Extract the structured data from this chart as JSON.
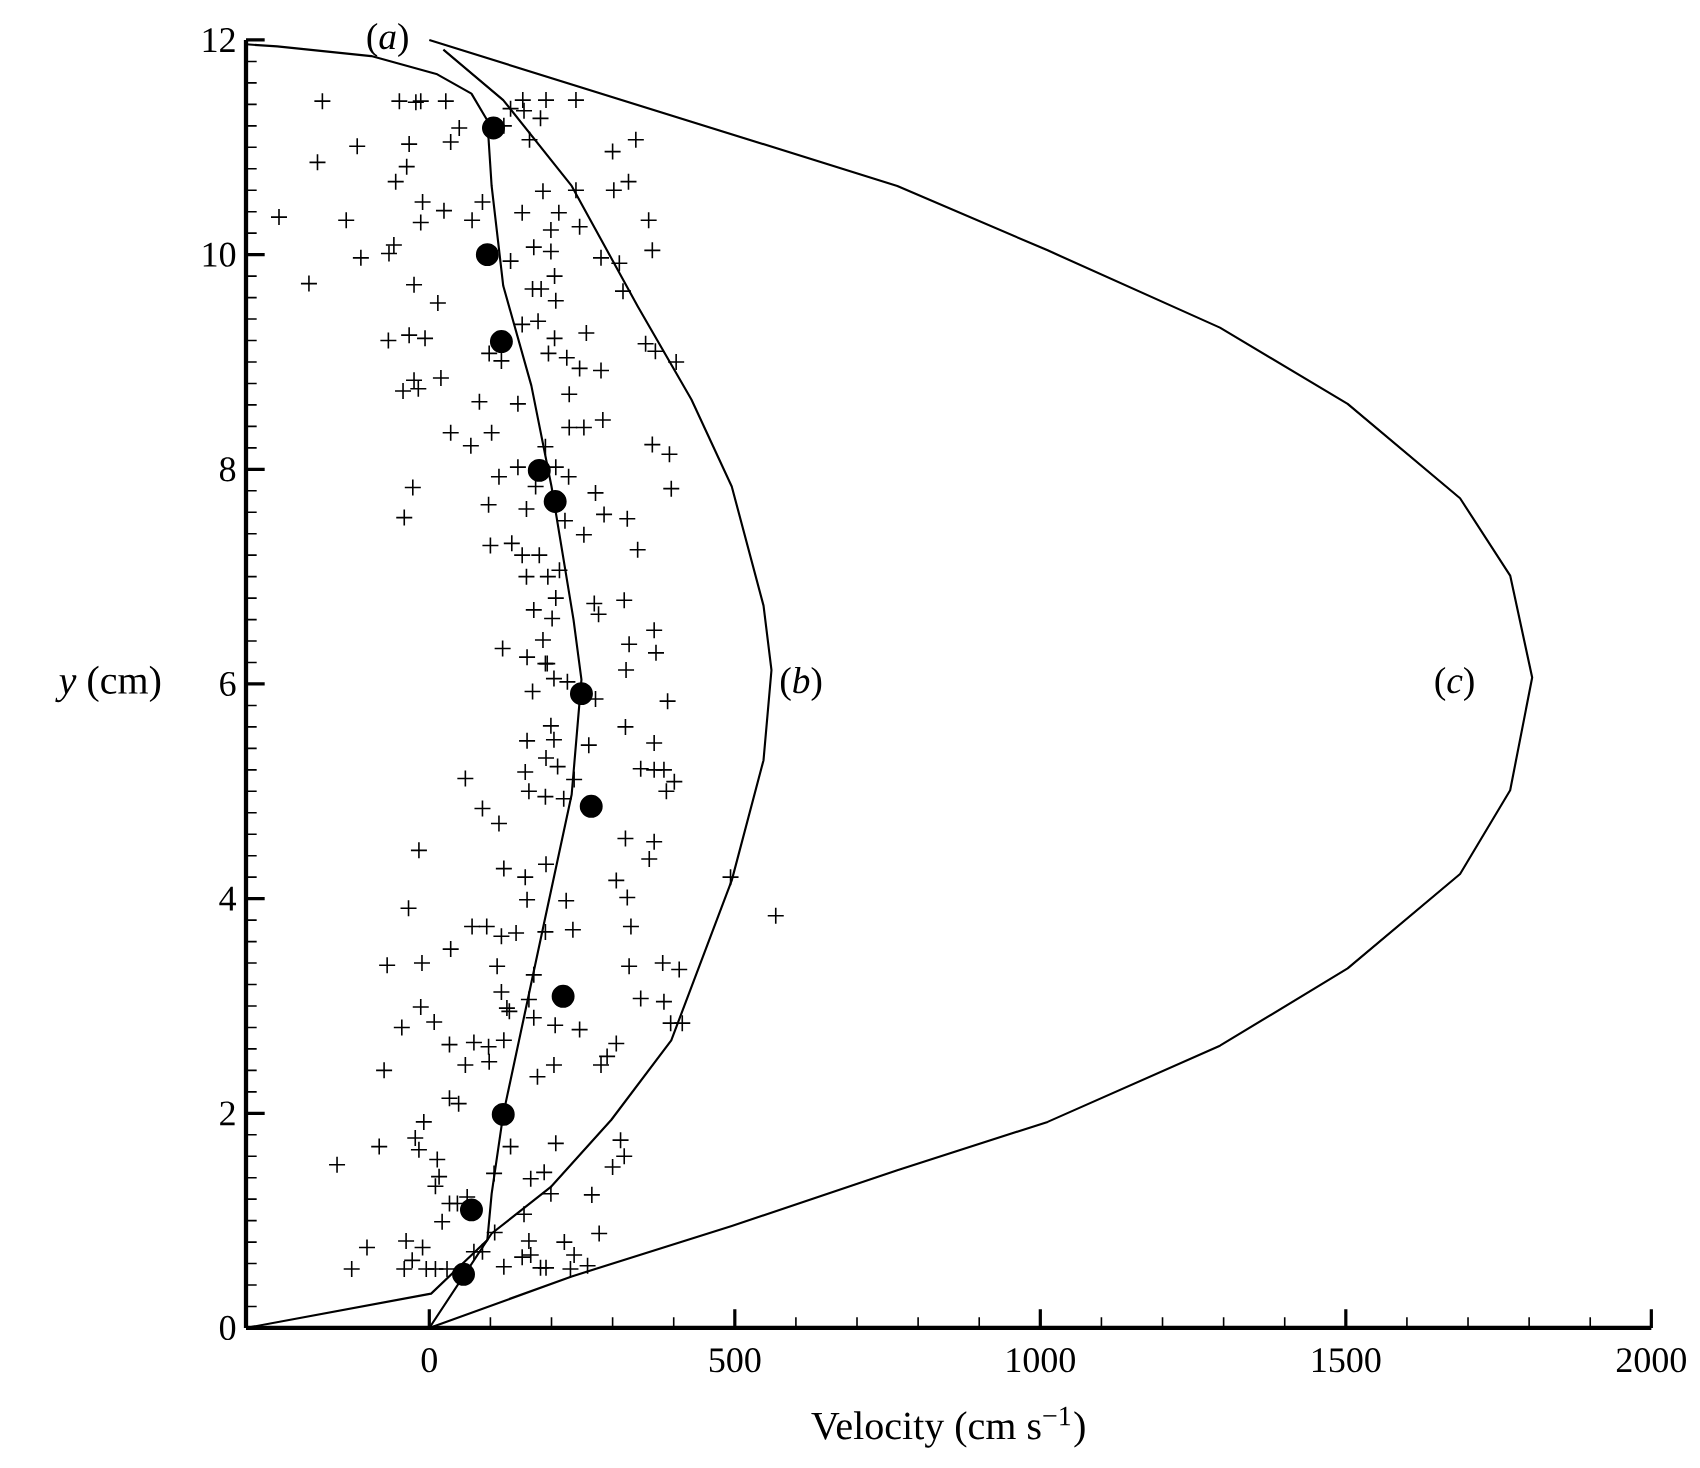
{
  "chart_data": {
    "type": "scatter",
    "xlabel": "Velocity (cm s$^{−1}$)",
    "ylabel": "*y* (cm)",
    "xlim": [
      -300,
      2000
    ],
    "ylim": [
      0,
      12
    ],
    "xticks": [
      0,
      500,
      1000,
      1500,
      2000
    ],
    "yticks": [
      0,
      2,
      4,
      6,
      8,
      10,
      12
    ],
    "annotations": [
      "(*a*)",
      "(*b*)",
      "(*c*)"
    ],
    "series": [
      {
        "marker": "cross",
        "color": "#000000",
        "x": [
          -175,
          -49,
          -22,
          -14,
          27,
          133,
          153,
          191,
          240,
          155,
          182,
          49,
          122,
          164,
          35,
          -33,
          -118,
          338,
          300,
          -183,
          -37,
          -55,
          326,
          302,
          186,
          240,
          -11,
          87,
          -246,
          -136,
          -14,
          24,
          70,
          152,
          212,
          199,
          246,
          359,
          -58,
          -66,
          -112,
          171,
          199,
          133,
          281,
          311,
          365,
          -197,
          -25,
          205,
          169,
          183,
          317,
          207,
          14,
          152,
          178,
          -67,
          -33,
          -7,
          205,
          257,
          354,
          370,
          404,
          98,
          118,
          195,
          225,
          246,
          281,
          -25,
          -43,
          -18,
          19,
          229,
          82,
          145,
          229,
          253,
          284,
          35,
          68,
          102,
          190,
          365,
          393,
          114,
          145,
          174,
          207,
          228,
          -27,
          396,
          -41,
          97,
          159,
          222,
          272,
          253,
          286,
          324,
          100,
          135,
          152,
          180,
          341,
          159,
          194,
          213,
          171,
          201,
          270,
          277,
          319,
          207,
          186,
          368,
          120,
          160,
          190,
          327,
          371,
          322,
          193,
          204,
          226,
          169,
          272,
          390,
          199,
          321,
          160,
          204,
          261,
          368,
          191,
          346,
          368,
          384,
          401,
          59,
          157,
          210,
          237,
          388,
          163,
          190,
          220,
          87,
          114,
          321,
          368,
          360,
          -17,
          122,
          157,
          191,
          306,
          160,
          224,
          324,
          493,
          567,
          -34,
          70,
          94,
          118,
          142,
          190,
          235,
          330,
          35,
          -69,
          -12,
          111,
          171,
          327,
          382,
          409,
          118,
          127,
          -14,
          163,
          346,
          384,
          -45,
          8,
          33,
          73,
          97,
          122,
          131,
          171,
          206,
          246,
          306,
          395,
          414,
          59,
          98,
          177,
          204,
          281,
          291,
          -74,
          33,
          48,
          -9,
          -23,
          -82,
          -17,
          133,
          207,
          313,
          319,
          -151,
          13,
          16,
          10,
          106,
          166,
          188,
          300,
          33,
          46,
          62,
          266,
          199,
          155,
          21,
          107,
          278,
          -102,
          -38,
          -11,
          73,
          87,
          163,
          221,
          152,
          166,
          237,
          -127,
          -41,
          -28,
          -5,
          10,
          29,
          122,
          182,
          191,
          231,
          259
        ],
        "values": [
          11.43,
          11.43,
          11.42,
          11.43,
          11.43,
          11.36,
          11.44,
          11.44,
          11.44,
          11.34,
          11.27,
          11.18,
          11.2,
          11.07,
          11.05,
          11.03,
          11.01,
          11.07,
          10.96,
          10.86,
          10.82,
          10.68,
          10.68,
          10.6,
          10.59,
          10.6,
          10.49,
          10.49,
          10.35,
          10.32,
          10.3,
          10.41,
          10.32,
          10.39,
          10.39,
          10.23,
          10.26,
          10.32,
          10.09,
          10.01,
          9.97,
          10.07,
          10.03,
          9.94,
          9.97,
          9.92,
          10.04,
          9.73,
          9.72,
          9.8,
          9.68,
          9.68,
          9.66,
          9.57,
          9.55,
          9.35,
          9.38,
          9.2,
          9.25,
          9.22,
          9.22,
          9.27,
          9.17,
          9.1,
          9.0,
          9.08,
          9.01,
          9.08,
          9.04,
          8.94,
          8.92,
          8.83,
          8.73,
          8.75,
          8.85,
          8.7,
          8.63,
          8.61,
          8.39,
          8.39,
          8.46,
          8.34,
          8.22,
          8.34,
          8.21,
          8.23,
          8.14,
          7.93,
          8.02,
          7.84,
          8.02,
          7.93,
          7.83,
          7.82,
          7.55,
          7.67,
          7.63,
          7.52,
          7.78,
          7.39,
          7.58,
          7.54,
          7.29,
          7.31,
          7.2,
          7.2,
          7.25,
          7.0,
          7.0,
          7.06,
          6.69,
          6.61,
          6.75,
          6.65,
          6.78,
          6.8,
          6.41,
          6.5,
          6.33,
          6.25,
          6.19,
          6.37,
          6.29,
          6.13,
          6.19,
          6.05,
          6.02,
          5.93,
          5.86,
          5.84,
          5.61,
          5.6,
          5.47,
          5.48,
          5.43,
          5.45,
          5.31,
          5.21,
          5.2,
          5.2,
          5.09,
          5.12,
          5.18,
          5.23,
          5.11,
          5.0,
          5.0,
          4.95,
          4.93,
          4.84,
          4.7,
          4.56,
          4.53,
          4.37,
          4.45,
          4.28,
          4.2,
          4.32,
          4.17,
          3.99,
          3.98,
          4.01,
          4.2,
          3.84,
          3.91,
          3.74,
          3.74,
          3.65,
          3.68,
          3.69,
          3.71,
          3.74,
          3.53,
          3.38,
          3.4,
          3.37,
          3.29,
          3.37,
          3.4,
          3.34,
          3.13,
          2.98,
          2.99,
          3.06,
          3.07,
          3.04,
          2.8,
          2.85,
          2.64,
          2.66,
          2.62,
          2.68,
          2.95,
          2.89,
          2.82,
          2.78,
          2.65,
          2.84,
          2.84,
          2.45,
          2.48,
          2.34,
          2.45,
          2.45,
          2.53,
          2.4,
          2.14,
          2.09,
          1.92,
          1.77,
          1.69,
          1.66,
          1.69,
          1.72,
          1.75,
          1.6,
          1.52,
          1.57,
          1.41,
          1.32,
          1.44,
          1.39,
          1.45,
          1.5,
          1.16,
          1.16,
          1.22,
          1.24,
          1.25,
          1.06,
          0.99,
          0.89,
          0.88,
          0.75,
          0.81,
          0.75,
          0.71,
          0.71,
          0.81,
          0.8,
          0.66,
          0.68,
          0.68,
          0.55,
          0.55,
          0.63,
          0.55,
          0.55,
          0.55,
          0.57,
          0.56,
          0.56,
          0.55,
          0.58
        ]
      },
      {
        "type": "line",
        "color": "#000000",
        "x": [
          -300,
          3,
          95,
          102,
          121,
          187,
          233,
          249,
          236,
          200,
          167,
          121,
          102,
          95,
          69,
          13,
          -95,
          -249,
          -300
        ],
        "values": [
          0,
          0.32,
          0.82,
          1.25,
          1.99,
          3.75,
          4.97,
          6.04,
          6.6,
          7.84,
          8.78,
          9.71,
          10.64,
          11.25,
          11.5,
          11.68,
          11.85,
          11.94,
          11.96
        ]
      },
      {
        "type": "line",
        "color": "#000000",
        "x": [
          0,
          102,
          200,
          298,
          396,
          495,
          547,
          560,
          547,
          495,
          429,
          341,
          233,
          121,
          23
        ],
        "values": [
          0,
          0.88,
          1.32,
          1.94,
          2.68,
          4.17,
          5.29,
          6.13,
          6.73,
          7.84,
          8.65,
          9.52,
          10.64,
          11.44,
          11.91
        ]
      },
      {
        "type": "line",
        "color": "#000000",
        "x": [
          0,
          233,
          495,
          766,
          1012,
          1294,
          1503,
          1687,
          1769,
          1805,
          1769,
          1687,
          1503,
          1294,
          1012,
          766,
          0
        ],
        "values": [
          0,
          0.48,
          0.95,
          1.47,
          1.92,
          2.63,
          3.35,
          4.23,
          5.01,
          6.06,
          7.01,
          7.73,
          8.61,
          9.32,
          10.04,
          10.64,
          12.0
        ]
      },
      {
        "type": "scatter",
        "marker": "circle",
        "color": "#000000",
        "x": [
          105,
          95,
          118,
          180,
          206,
          249,
          265,
          219,
          121,
          69,
          56
        ],
        "values": [
          11.18,
          10.0,
          9.19,
          7.99,
          7.7,
          5.91,
          4.86,
          3.09,
          1.99,
          1.1,
          0.5
        ]
      }
    ]
  }
}
